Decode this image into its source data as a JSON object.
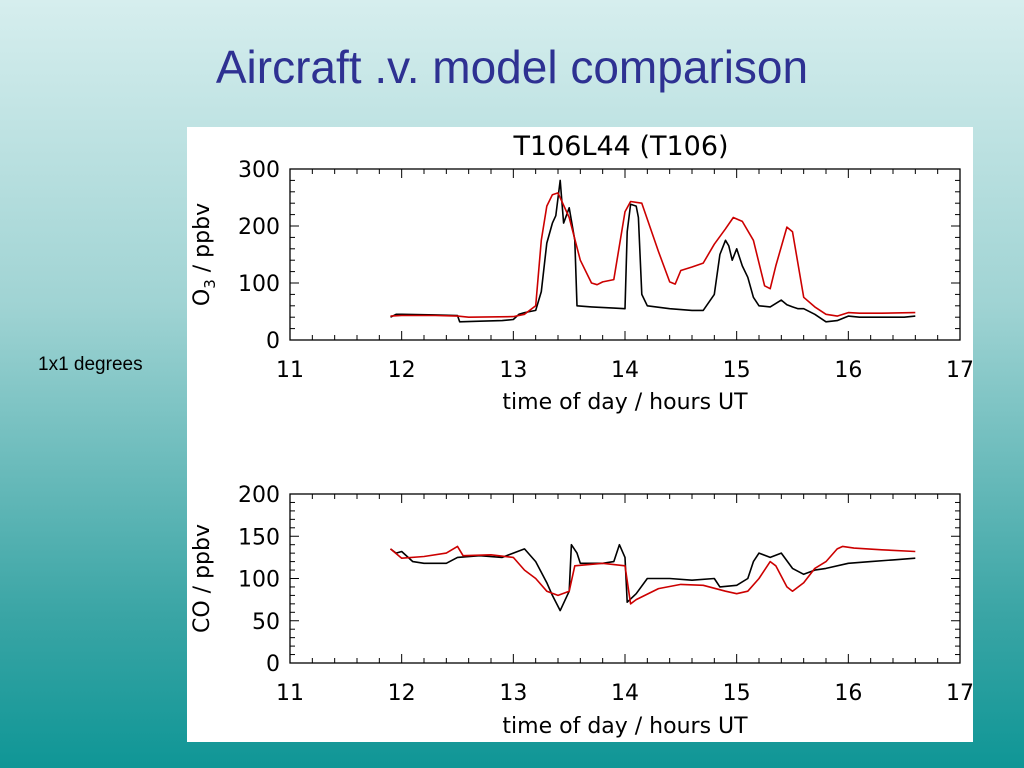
{
  "slide": {
    "title": "Aircraft .v. model comparison",
    "side_label": "1x1 degrees"
  },
  "colors": {
    "observed": "#000000",
    "model": "#cc0000",
    "title": "#2e3192"
  },
  "chart_data": [
    {
      "type": "line",
      "title": "T106L44 (T106)",
      "xlabel": "time of day / hours UT",
      "ylabel": "O3 / ppbv",
      "ylabel_main": "O",
      "ylabel_sub": "3",
      "ylabel_rest": " / ppbv",
      "xlim": [
        11,
        17
      ],
      "ylim": [
        0,
        300
      ],
      "xticks": [
        11,
        12,
        13,
        14,
        15,
        16,
        17
      ],
      "yticks": [
        0,
        100,
        200,
        300
      ],
      "series": [
        {
          "key": "observed",
          "color": "#000000",
          "points": [
            [
              11.9,
              40
            ],
            [
              11.95,
              45
            ],
            [
              12.0,
              45
            ],
            [
              12.3,
              44
            ],
            [
              12.5,
              43
            ],
            [
              12.52,
              32
            ],
            [
              12.7,
              33
            ],
            [
              12.9,
              34
            ],
            [
              13.0,
              36
            ],
            [
              13.05,
              45
            ],
            [
              13.1,
              48
            ],
            [
              13.15,
              50
            ],
            [
              13.2,
              52
            ],
            [
              13.25,
              85
            ],
            [
              13.3,
              170
            ],
            [
              13.35,
              205
            ],
            [
              13.38,
              218
            ],
            [
              13.42,
              280
            ],
            [
              13.45,
              205
            ],
            [
              13.5,
              232
            ],
            [
              13.55,
              175
            ],
            [
              13.57,
              60
            ],
            [
              13.7,
              58
            ],
            [
              13.9,
              56
            ],
            [
              14.0,
              55
            ],
            [
              14.02,
              190
            ],
            [
              14.05,
              238
            ],
            [
              14.1,
              235
            ],
            [
              14.12,
              215
            ],
            [
              14.15,
              80
            ],
            [
              14.2,
              60
            ],
            [
              14.4,
              55
            ],
            [
              14.6,
              52
            ],
            [
              14.7,
              52
            ],
            [
              14.8,
              80
            ],
            [
              14.85,
              150
            ],
            [
              14.9,
              175
            ],
            [
              14.93,
              165
            ],
            [
              14.96,
              140
            ],
            [
              15.0,
              160
            ],
            [
              15.05,
              130
            ],
            [
              15.1,
              110
            ],
            [
              15.15,
              75
            ],
            [
              15.2,
              60
            ],
            [
              15.3,
              58
            ],
            [
              15.4,
              70
            ],
            [
              15.45,
              62
            ],
            [
              15.5,
              58
            ],
            [
              15.55,
              55
            ],
            [
              15.6,
              55
            ],
            [
              15.7,
              45
            ],
            [
              15.8,
              32
            ],
            [
              15.9,
              34
            ],
            [
              16.0,
              42
            ],
            [
              16.1,
              40
            ],
            [
              16.3,
              40
            ],
            [
              16.5,
              40
            ],
            [
              16.6,
              42
            ]
          ]
        },
        {
          "key": "model",
          "color": "#cc0000",
          "points": [
            [
              11.9,
              42
            ],
            [
              12.0,
              43
            ],
            [
              12.3,
              43
            ],
            [
              12.5,
              42
            ],
            [
              12.6,
              40
            ],
            [
              13.0,
              41
            ],
            [
              13.1,
              45
            ],
            [
              13.2,
              60
            ],
            [
              13.25,
              175
            ],
            [
              13.3,
              235
            ],
            [
              13.35,
              255
            ],
            [
              13.4,
              258
            ],
            [
              13.5,
              215
            ],
            [
              13.6,
              140
            ],
            [
              13.7,
              100
            ],
            [
              13.75,
              97
            ],
            [
              13.8,
              102
            ],
            [
              13.9,
              106
            ],
            [
              14.0,
              225
            ],
            [
              14.05,
              243
            ],
            [
              14.15,
              240
            ],
            [
              14.3,
              155
            ],
            [
              14.4,
              102
            ],
            [
              14.45,
              98
            ],
            [
              14.5,
              122
            ],
            [
              14.6,
              128
            ],
            [
              14.7,
              135
            ],
            [
              14.8,
              168
            ],
            [
              14.9,
              195
            ],
            [
              14.97,
              215
            ],
            [
              15.05,
              208
            ],
            [
              15.15,
              175
            ],
            [
              15.25,
              95
            ],
            [
              15.3,
              90
            ],
            [
              15.35,
              130
            ],
            [
              15.45,
              198
            ],
            [
              15.5,
              190
            ],
            [
              15.6,
              75
            ],
            [
              15.7,
              58
            ],
            [
              15.8,
              45
            ],
            [
              15.9,
              42
            ],
            [
              16.0,
              48
            ],
            [
              16.1,
              47
            ],
            [
              16.3,
              47
            ],
            [
              16.6,
              48
            ]
          ]
        }
      ]
    },
    {
      "type": "line",
      "title": "",
      "xlabel": "time of day / hours UT",
      "ylabel": "CO / ppbv",
      "ylabel_main": "CO",
      "ylabel_sub": "",
      "ylabel_rest": " / ppbv",
      "xlim": [
        11,
        17
      ],
      "ylim": [
        0,
        200
      ],
      "xticks": [
        11,
        12,
        13,
        14,
        15,
        16,
        17
      ],
      "yticks": [
        0,
        50,
        100,
        150,
        200
      ],
      "series": [
        {
          "key": "observed",
          "color": "#000000",
          "points": [
            [
              11.9,
              135
            ],
            [
              11.95,
              130
            ],
            [
              12.0,
              132
            ],
            [
              12.1,
              120
            ],
            [
              12.2,
              118
            ],
            [
              12.4,
              118
            ],
            [
              12.5,
              125
            ],
            [
              12.7,
              127
            ],
            [
              12.9,
              125
            ],
            [
              13.0,
              130
            ],
            [
              13.1,
              135
            ],
            [
              13.2,
              120
            ],
            [
              13.3,
              95
            ],
            [
              13.35,
              80
            ],
            [
              13.42,
              62
            ],
            [
              13.5,
              85
            ],
            [
              13.52,
              140
            ],
            [
              13.57,
              130
            ],
            [
              13.6,
              118
            ],
            [
              13.8,
              118
            ],
            [
              13.9,
              120
            ],
            [
              13.95,
              140
            ],
            [
              14.0,
              125
            ],
            [
              14.02,
              72
            ],
            [
              14.1,
              82
            ],
            [
              14.2,
              100
            ],
            [
              14.4,
              100
            ],
            [
              14.6,
              98
            ],
            [
              14.8,
              100
            ],
            [
              14.85,
              90
            ],
            [
              15.0,
              92
            ],
            [
              15.1,
              100
            ],
            [
              15.15,
              120
            ],
            [
              15.2,
              130
            ],
            [
              15.3,
              125
            ],
            [
              15.4,
              130
            ],
            [
              15.5,
              112
            ],
            [
              15.6,
              105
            ],
            [
              15.7,
              110
            ],
            [
              15.8,
              112
            ],
            [
              16.0,
              118
            ],
            [
              16.2,
              120
            ],
            [
              16.4,
              122
            ],
            [
              16.6,
              124
            ]
          ]
        },
        {
          "key": "model",
          "color": "#cc0000",
          "points": [
            [
              11.9,
              135
            ],
            [
              12.0,
              124
            ],
            [
              12.2,
              126
            ],
            [
              12.4,
              130
            ],
            [
              12.5,
              138
            ],
            [
              12.55,
              127
            ],
            [
              12.8,
              128
            ],
            [
              13.0,
              125
            ],
            [
              13.1,
              110
            ],
            [
              13.2,
              100
            ],
            [
              13.3,
              85
            ],
            [
              13.4,
              80
            ],
            [
              13.5,
              85
            ],
            [
              13.55,
              115
            ],
            [
              13.8,
              118
            ],
            [
              14.0,
              115
            ],
            [
              14.05,
              70
            ],
            [
              14.1,
              75
            ],
            [
              14.3,
              88
            ],
            [
              14.5,
              93
            ],
            [
              14.7,
              92
            ],
            [
              14.9,
              85
            ],
            [
              15.0,
              82
            ],
            [
              15.1,
              85
            ],
            [
              15.2,
              100
            ],
            [
              15.3,
              120
            ],
            [
              15.35,
              115
            ],
            [
              15.45,
              90
            ],
            [
              15.5,
              85
            ],
            [
              15.6,
              95
            ],
            [
              15.7,
              112
            ],
            [
              15.8,
              120
            ],
            [
              15.9,
              135
            ],
            [
              15.95,
              138
            ],
            [
              16.05,
              136
            ],
            [
              16.3,
              134
            ],
            [
              16.6,
              132
            ]
          ]
        }
      ]
    }
  ]
}
